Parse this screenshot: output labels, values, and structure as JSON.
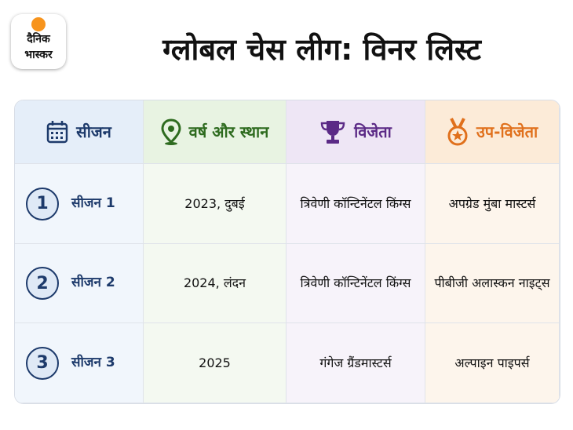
{
  "logo": {
    "lines": [
      "दैनिक",
      "भास्कर"
    ]
  },
  "header": {
    "title": "ग्लोबल चेस लीग: विनर लिस्ट"
  },
  "table": {
    "headers": [
      "सीजन",
      "वर्ष और स्थान",
      "विजेता",
      "उप-विजेता"
    ],
    "rows": [
      [
        "1",
        "सीजन 1",
        "2023, दुबई",
        "त्रिवेणी कॉन्टिनेंटल किंग्स",
        "अपग्रेड मुंबा मास्टर्स"
      ],
      [
        "2",
        "सीजन 2",
        "2024, लंदन",
        "त्रिवेणी कॉन्टिनेंटल किंग्स",
        "पीबीजी अलास्कन नाइट्स"
      ],
      [
        "3",
        "सीजन 3",
        "2025",
        "गंगेज ग्रैंडमास्टर्स",
        "अल्पाइन पाइपर्स"
      ]
    ]
  }
}
